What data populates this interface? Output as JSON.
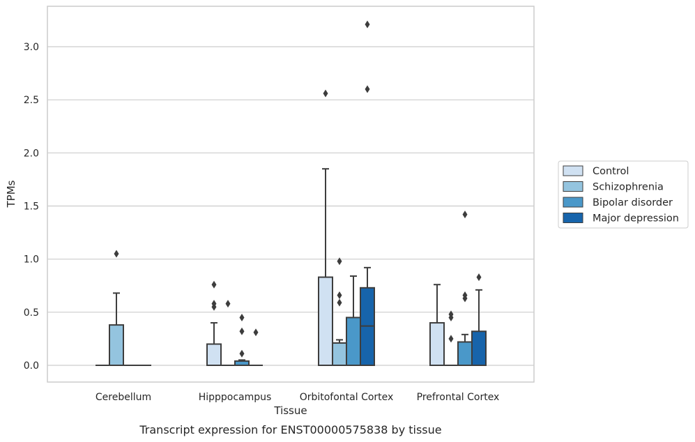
{
  "caption": "Transcript expression for ENST00000575838 by tissue",
  "chart_data": {
    "type": "box",
    "xlabel": "Tissue",
    "ylabel": "TPMs",
    "ylim": [
      -0.15,
      3.38
    ],
    "yticks": [
      "0.0",
      "0.5",
      "1.0",
      "1.5",
      "2.0",
      "2.5",
      "3.0"
    ],
    "ytick_values": [
      0.0,
      0.5,
      1.0,
      1.5,
      2.0,
      2.5,
      3.0
    ],
    "grid": "horizontal",
    "legend_position": "right",
    "categories": [
      "Cerebellum",
      "Hipppocampus",
      "Orbitofontal Cortex",
      "Prefrontal Cortex"
    ],
    "series": [
      {
        "name": "Control",
        "color": "#d0e1f2",
        "boxes": [
          {
            "q1": 0,
            "median": 0,
            "q3": 0,
            "whisker_low": 0,
            "whisker_high": 0,
            "outliers": []
          },
          {
            "q1": 0,
            "median": 0,
            "q3": 0.2,
            "whisker_low": 0,
            "whisker_high": 0.4,
            "outliers": [
              0.55,
              0.58,
              0.76
            ]
          },
          {
            "q1": 0,
            "median": 0,
            "q3": 0.83,
            "whisker_low": 0,
            "whisker_high": 1.85,
            "outliers": [
              2.56
            ]
          },
          {
            "q1": 0,
            "median": 0,
            "q3": 0.4,
            "whisker_low": 0,
            "whisker_high": 0.76,
            "outliers": []
          }
        ]
      },
      {
        "name": "Schizophrenia",
        "color": "#94c4df",
        "boxes": [
          {
            "q1": 0,
            "median": 0,
            "q3": 0.38,
            "whisker_low": 0,
            "whisker_high": 0.68,
            "outliers": [
              1.05
            ]
          },
          {
            "q1": 0,
            "median": 0,
            "q3": 0,
            "whisker_low": 0,
            "whisker_high": 0,
            "outliers": [
              0.58
            ]
          },
          {
            "q1": 0,
            "median": 0,
            "q3": 0.21,
            "whisker_low": 0,
            "whisker_high": 0.24,
            "outliers": [
              0.59,
              0.66,
              0.98
            ]
          },
          {
            "q1": 0,
            "median": 0,
            "q3": 0,
            "whisker_low": 0,
            "whisker_high": 0,
            "outliers": [
              0.25,
              0.45,
              0.48
            ]
          }
        ]
      },
      {
        "name": "Bipolar disorder",
        "color": "#4a98c9",
        "boxes": [
          {
            "q1": 0,
            "median": 0,
            "q3": 0,
            "whisker_low": 0,
            "whisker_high": 0,
            "outliers": []
          },
          {
            "q1": 0,
            "median": 0,
            "q3": 0.04,
            "whisker_low": 0,
            "whisker_high": 0.05,
            "outliers": [
              0.11,
              0.32,
              0.45
            ]
          },
          {
            "q1": 0,
            "median": 0,
            "q3": 0.45,
            "whisker_low": 0,
            "whisker_high": 0.84,
            "outliers": []
          },
          {
            "q1": 0,
            "median": 0,
            "q3": 0.22,
            "whisker_low": 0,
            "whisker_high": 0.29,
            "outliers": [
              0.63,
              0.66,
              1.42
            ]
          }
        ]
      },
      {
        "name": "Major depression",
        "color": "#1764ab",
        "boxes": [
          {
            "q1": 0,
            "median": 0,
            "q3": 0,
            "whisker_low": 0,
            "whisker_high": 0,
            "outliers": []
          },
          {
            "q1": 0,
            "median": 0,
            "q3": 0,
            "whisker_low": 0,
            "whisker_high": 0,
            "outliers": [
              0.31
            ]
          },
          {
            "q1": 0,
            "median": 0.37,
            "q3": 0.73,
            "whisker_low": 0,
            "whisker_high": 0.92,
            "outliers": [
              2.6,
              3.21
            ]
          },
          {
            "q1": 0,
            "median": 0,
            "q3": 0.32,
            "whisker_low": 0,
            "whisker_high": 0.71,
            "outliers": [
              0.83
            ]
          }
        ]
      }
    ]
  }
}
